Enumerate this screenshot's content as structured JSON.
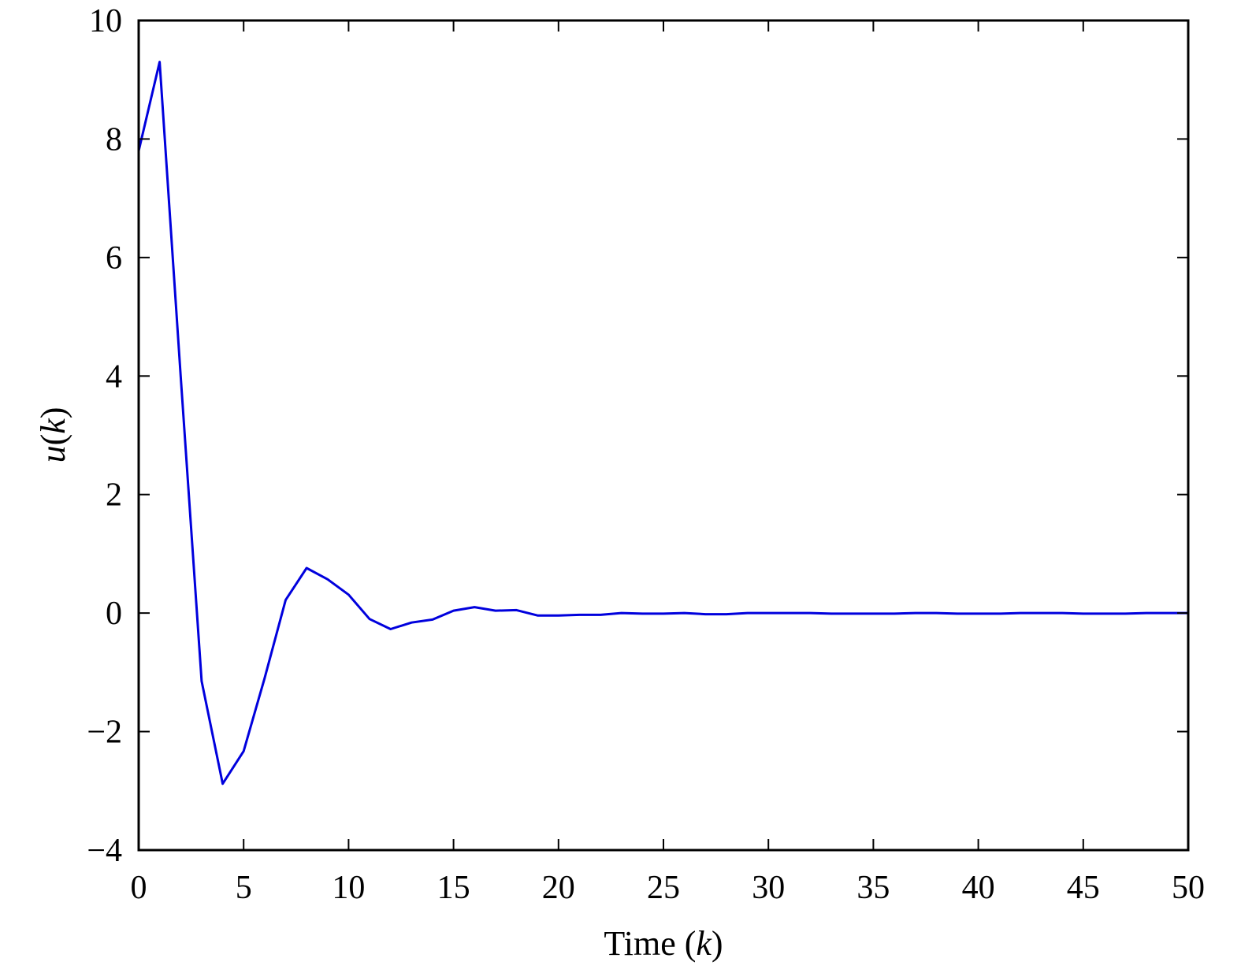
{
  "chart_data": {
    "type": "line",
    "title": "",
    "xlabel": "Time (k)",
    "xlabel_parts": {
      "prefix": "Time (",
      "var": "k",
      "suffix": ")"
    },
    "ylabel": "u(k)",
    "ylabel_parts": {
      "var": "u",
      "mid": "(",
      "var2": "k",
      "suffix": ")"
    },
    "xlim": [
      0,
      50
    ],
    "ylim": [
      -4,
      10
    ],
    "xticks": [
      0,
      5,
      10,
      15,
      20,
      25,
      30,
      35,
      40,
      45,
      50
    ],
    "yticks": [
      -4,
      -2,
      0,
      2,
      4,
      6,
      8,
      10
    ],
    "ytick_labels": [
      "−4",
      "−2",
      "0",
      "2",
      "4",
      "6",
      "8",
      "10"
    ],
    "grid": false,
    "legend": null,
    "series": [
      {
        "name": "u(k)",
        "color": "#0000dd",
        "x": [
          0,
          1,
          2,
          3,
          4,
          5,
          6,
          7,
          8,
          9,
          10,
          11,
          12,
          13,
          14,
          15,
          16,
          17,
          18,
          19,
          20,
          21,
          22,
          23,
          24,
          25,
          26,
          27,
          28,
          29,
          30,
          31,
          32,
          33,
          34,
          35,
          36,
          37,
          38,
          39,
          40,
          41,
          42,
          43,
          44,
          45,
          46,
          47,
          48,
          49,
          50
        ],
        "values": [
          7.8,
          9.3,
          4.0,
          -1.15,
          -2.88,
          -2.33,
          -1.1,
          0.22,
          0.76,
          0.57,
          0.31,
          -0.1,
          -0.27,
          -0.16,
          -0.11,
          0.04,
          0.1,
          0.04,
          0.05,
          -0.04,
          -0.04,
          -0.03,
          -0.03,
          0.0,
          -0.01,
          -0.01,
          0.0,
          -0.02,
          -0.02,
          0.0,
          0.0,
          0.0,
          0.0,
          -0.01,
          -0.01,
          -0.01,
          -0.01,
          0.0,
          0.0,
          -0.01,
          -0.01,
          -0.01,
          0.0,
          0.0,
          0.0,
          -0.01,
          -0.01,
          -0.01,
          0.0,
          0.0,
          0.0
        ]
      }
    ]
  }
}
